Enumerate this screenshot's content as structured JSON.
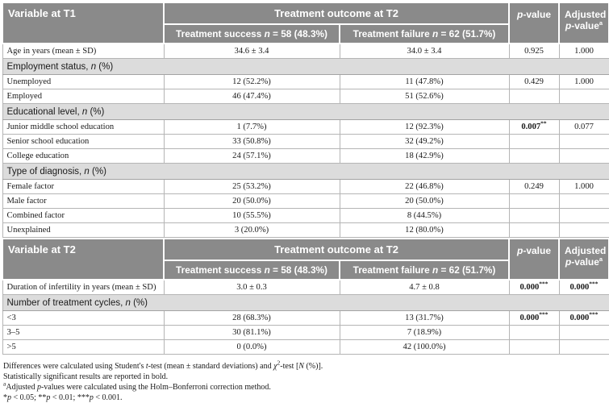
{
  "colors": {
    "header_bg": "#8a8a8a",
    "header_text": "#ffffff",
    "section_bg": "#dcdcdc",
    "body_border": "#b5b5b5",
    "text": "#1a1a1a"
  },
  "headers": {
    "t1_variable": "Variable at T1",
    "t2_variable": "Variable at T2",
    "outcome": "Treatment outcome at T2",
    "p_value_parts": [
      {
        "t": "p",
        "s": "i"
      },
      {
        "t": "-value"
      }
    ],
    "adjusted_parts": [
      {
        "t": "Adjusted "
      },
      {
        "t": "p",
        "s": "i"
      },
      {
        "t": "-value"
      },
      {
        "t": "a",
        "s": "sup"
      }
    ],
    "success_parts": [
      {
        "t": "Treatment success "
      },
      {
        "t": "n",
        "s": "i"
      },
      {
        "t": " = 58 (48.3%)"
      }
    ],
    "failure_parts": [
      {
        "t": "Treatment failure "
      },
      {
        "t": "n",
        "s": "i"
      },
      {
        "t": " = 62 (51.7%)"
      }
    ]
  },
  "t1_rows": [
    {
      "label": "Age in years (mean ± SD)",
      "success": "34.6 ± 3.4",
      "failure": "34.0 ± 3.4",
      "p": "0.925",
      "adj": "1.000"
    },
    {
      "section_parts": [
        {
          "t": "Employment status, "
        },
        {
          "t": "n",
          "s": "i"
        },
        {
          "t": " (%)"
        }
      ]
    },
    {
      "label": "Unemployed",
      "success": "12 (52.2%)",
      "failure": "11 (47.8%)",
      "p": "0.429",
      "adj": "1.000"
    },
    {
      "label": "Employed",
      "success": "46 (47.4%)",
      "failure": "51 (52.6%)",
      "p": "",
      "adj": ""
    },
    {
      "section_parts": [
        {
          "t": "Educational level, "
        },
        {
          "t": "n",
          "s": "i"
        },
        {
          "t": " (%)"
        }
      ]
    },
    {
      "label": "Junior middle school education",
      "success": "1 (7.7%)",
      "failure": "12 (92.3%)",
      "p_parts": [
        {
          "t": "0.007"
        },
        {
          "t": "**",
          "s": "sup"
        }
      ],
      "adj": "0.077"
    },
    {
      "label": "Senior school education",
      "success": "33 (50.8%)",
      "failure": "32 (49.2%)",
      "p": "",
      "adj": ""
    },
    {
      "label": "College education",
      "success": "24 (57.1%)",
      "failure": "18 (42.9%)",
      "p": "",
      "adj": ""
    },
    {
      "section_parts": [
        {
          "t": "Type of diagnosis, "
        },
        {
          "t": "n",
          "s": "i"
        },
        {
          "t": " (%)"
        }
      ]
    },
    {
      "label": "Female factor",
      "success": "25 (53.2%)",
      "failure": "22 (46.8%)",
      "p": "0.249",
      "adj": "1.000"
    },
    {
      "label": "Male factor",
      "success": "20 (50.0%)",
      "failure": "20 (50.0%)",
      "p": "",
      "adj": ""
    },
    {
      "label": "Combined factor",
      "success": "10 (55.5%)",
      "failure": "8 (44.5%)",
      "p": "",
      "adj": ""
    },
    {
      "label": "Unexplained",
      "success": "3 (20.0%)",
      "failure": "12 (80.0%)",
      "p": "",
      "adj": ""
    }
  ],
  "t2_rows": [
    {
      "label": "Duration of infertility in years (mean ± SD)",
      "success": "3.0 ± 0.3",
      "failure": "4.7 ± 0.8",
      "p_parts": [
        {
          "t": "0.000"
        },
        {
          "t": "***",
          "s": "sup"
        }
      ],
      "adj_parts": [
        {
          "t": "0.000"
        },
        {
          "t": "***",
          "s": "sup"
        }
      ]
    },
    {
      "section_parts": [
        {
          "t": "Number of treatment cycles, "
        },
        {
          "t": "n",
          "s": "i"
        },
        {
          "t": " (%)"
        }
      ]
    },
    {
      "label": "<3",
      "success": "28 (68.3%)",
      "failure": "13 (31.7%)",
      "p_parts": [
        {
          "t": "0.000"
        },
        {
          "t": "***",
          "s": "sup"
        }
      ],
      "adj_parts": [
        {
          "t": "0.000"
        },
        {
          "t": "***",
          "s": "sup"
        }
      ]
    },
    {
      "label": "3–5",
      "success": "30 (81.1%)",
      "failure": "7 (18.9%)",
      "p": "",
      "adj": ""
    },
    {
      "label": ">5",
      "success": "0 (0.0%)",
      "failure": "42 (100.0%)",
      "p": "",
      "adj": ""
    }
  ],
  "footnotes": [
    {
      "parts": [
        {
          "t": "Differences were calculated using Student's "
        },
        {
          "t": "t",
          "s": "i"
        },
        {
          "t": "-test (mean ± standard deviations) and "
        },
        {
          "t": "χ",
          "s": "i"
        },
        {
          "t": "2",
          "s": "sup"
        },
        {
          "t": "-test ["
        },
        {
          "t": "N",
          "s": "i"
        },
        {
          "t": " (%)]."
        }
      ]
    },
    {
      "parts": [
        {
          "t": "Statistically significant results are reported in bold."
        }
      ]
    },
    {
      "parts": [
        {
          "t": "a",
          "s": "sup"
        },
        {
          "t": "Adjusted "
        },
        {
          "t": "p",
          "s": "i"
        },
        {
          "t": "-values were calculated using the Holm–Bonferroni correction method."
        }
      ]
    },
    {
      "parts": [
        {
          "t": "*"
        },
        {
          "t": "p",
          "s": "i"
        },
        {
          "t": " < 0.05; **"
        },
        {
          "t": "p",
          "s": "i"
        },
        {
          "t": " < 0.01; ***"
        },
        {
          "t": "p",
          "s": "i"
        },
        {
          "t": " < 0.001."
        }
      ]
    }
  ]
}
